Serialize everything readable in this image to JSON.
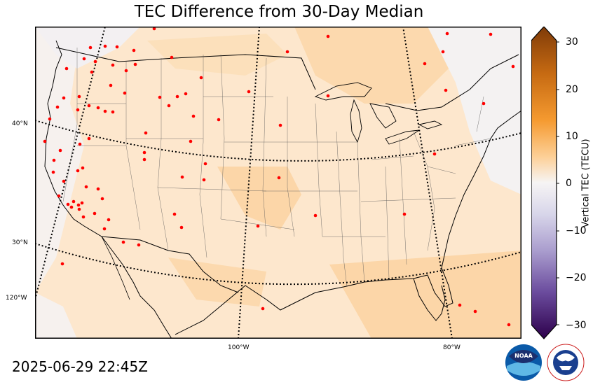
{
  "title": "TEC Difference from 30-Day Median",
  "timestamp": "2025-06-29 22:45Z",
  "colorbar": {
    "label": "Vertical TEC (TECU)",
    "ticks": [
      "30",
      "20",
      "10",
      "0",
      "−10",
      "−20",
      "−30"
    ],
    "range": [
      -30,
      30
    ]
  },
  "latitude_labels": [
    "40°N",
    "30°N"
  ],
  "longitude_labels": [
    "120°W",
    "100°W",
    "80°W"
  ],
  "logos": {
    "noaa": "NOAA",
    "nws": "NATIONAL WEATHER SERVICE"
  },
  "colors": {
    "positive_high": "#7f3b08",
    "positive_mid": "#f59a30",
    "positive_low": "#fde5c6",
    "neutral": "#f4f4f6",
    "negative_low": "#d8d6ea",
    "negative_mid": "#8877b8",
    "negative_high": "#2d004b",
    "station": "#ff0000"
  },
  "stations_count_visible": 95
}
